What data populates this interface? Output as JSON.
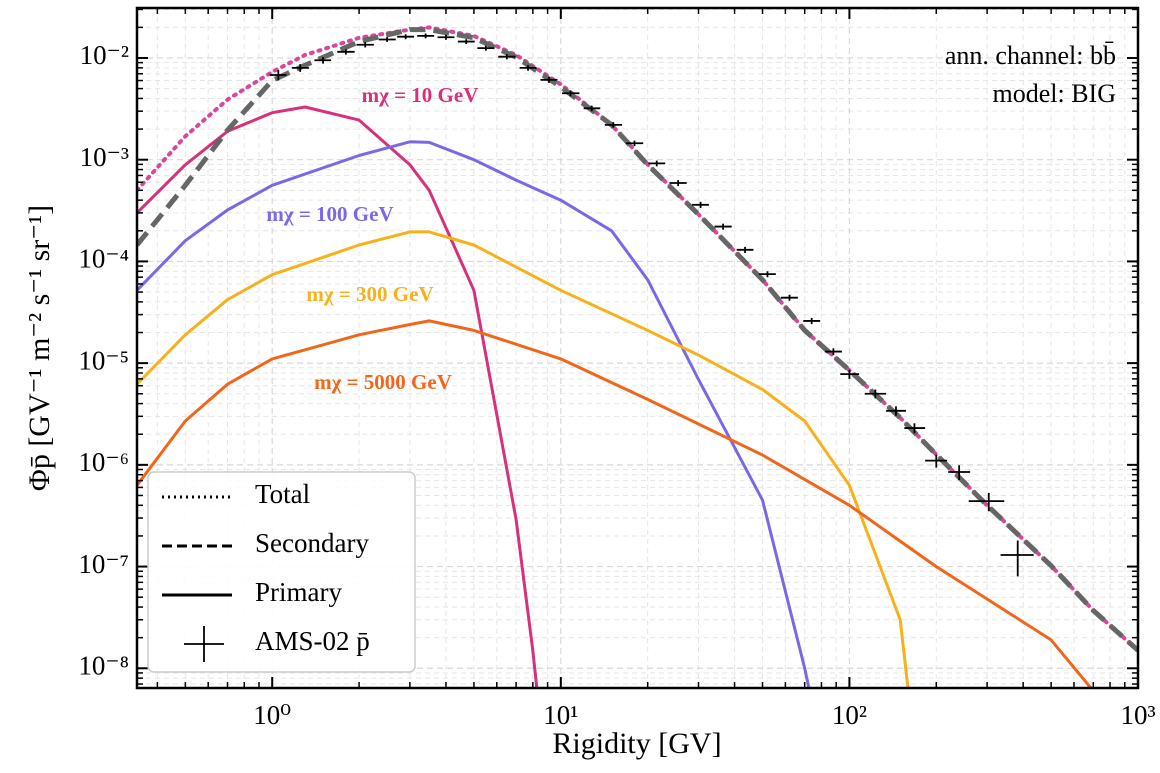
{
  "chart_data": {
    "type": "line",
    "xlabel": "Rigidity [GV]",
    "ylabel": "Φp̄ [GV⁻¹ m⁻² s⁻¹ sr⁻¹]",
    "xscale": "log",
    "yscale": "log",
    "xlim": [
      0.34,
      1000
    ],
    "ylim": [
      6.4e-09,
      0.031
    ],
    "xticks": [
      {
        "value": 1,
        "label": "10⁰"
      },
      {
        "value": 10,
        "label": "10¹"
      },
      {
        "value": 100,
        "label": "10²"
      },
      {
        "value": 1000,
        "label": "10³"
      }
    ],
    "yticks": [
      {
        "value": 1e-08,
        "label": "10⁻⁸"
      },
      {
        "value": 1e-07,
        "label": "10⁻⁷"
      },
      {
        "value": 1e-06,
        "label": "10⁻⁶"
      },
      {
        "value": 1e-05,
        "label": "10⁻⁵"
      },
      {
        "value": 0.0001,
        "label": "10⁻⁴"
      },
      {
        "value": 0.001,
        "label": "10⁻³"
      },
      {
        "value": 0.01,
        "label": "10⁻²"
      }
    ],
    "grid": true,
    "minor_ticks": true,
    "legend_position": "lower left",
    "legend": [
      {
        "label": "Total",
        "style": "dotted"
      },
      {
        "label": "Secondary",
        "style": "dashed"
      },
      {
        "label": "Primary",
        "style": "solid"
      },
      {
        "label": "AMS-02 p̄",
        "style": "errorbar"
      }
    ],
    "annotations": [
      "ann. channel: bb̄",
      "model: BIG"
    ],
    "series": [
      {
        "style": "solid",
        "label": "mχ = 10 GeV",
        "color": "#d6317c",
        "x": [
          0.34,
          0.5,
          0.7,
          1,
          1.3,
          2,
          3,
          3.5,
          5,
          7,
          8,
          8.5
        ],
        "values": [
          0.0003,
          0.00089,
          0.0019,
          0.0029,
          0.0033,
          0.00245,
          0.00089,
          0.0005,
          5.2e-05,
          2.9e-07,
          1.5e-08,
          3e-09
        ]
      },
      {
        "style": "solid",
        "label": "mχ = 100 GeV",
        "color": "#7b68e6",
        "x": [
          0.34,
          0.5,
          0.7,
          1,
          2,
          3,
          3.5,
          5,
          7,
          10,
          15,
          20,
          30,
          50,
          70,
          75
        ],
        "values": [
          5.2e-05,
          0.00016,
          0.00032,
          0.00056,
          0.0011,
          0.0015,
          0.00148,
          0.001,
          0.00063,
          0.0004,
          0.0002,
          6.6e-05,
          6.9e-06,
          4.5e-07,
          1e-08,
          4e-09
        ]
      },
      {
        "style": "solid",
        "label": "mχ = 300 GeV",
        "color": "#f6b11b",
        "x": [
          0.34,
          0.5,
          0.7,
          1,
          2,
          3,
          3.5,
          5,
          10,
          20,
          30,
          50,
          70,
          100,
          150,
          160
        ],
        "values": [
          6.2e-06,
          1.9e-05,
          4.2e-05,
          7.4e-05,
          0.000145,
          0.000195,
          0.000195,
          0.000145,
          5.2e-05,
          2.1e-05,
          1.2e-05,
          5.5e-06,
          2.7e-06,
          6.3e-07,
          3e-08,
          6e-09
        ]
      },
      {
        "style": "solid",
        "label": "mχ = 5000 GeV",
        "color": "#f0661b",
        "x": [
          0.34,
          0.5,
          0.7,
          1,
          2,
          3,
          3.5,
          5,
          10,
          20,
          50,
          100,
          200,
          500,
          700
        ],
        "values": [
          6.3e-07,
          2.7e-06,
          6.2e-06,
          1.1e-05,
          1.9e-05,
          2.4e-05,
          2.6e-05,
          2.1e-05,
          1.1e-05,
          4.4e-06,
          1.25e-06,
          4e-07,
          1e-07,
          1.9e-08,
          6e-09
        ]
      },
      {
        "style": "dotted",
        "color": "#d9479a",
        "x": [
          0.34,
          0.5,
          0.7,
          1,
          1.3,
          2,
          3,
          3.5,
          5,
          7,
          10,
          15,
          20,
          30,
          50,
          70,
          100,
          150,
          200,
          300,
          500,
          700,
          1000
        ],
        "values": [
          0.0005,
          0.0017,
          0.0039,
          0.0073,
          0.0107,
          0.0158,
          0.019,
          0.02,
          0.0165,
          0.0107,
          0.0055,
          0.0022,
          0.0009,
          0.00029,
          6.6e-05,
          2.1e-05,
          8.5e-06,
          2.9e-06,
          1.26e-06,
          4e-07,
          1.02e-07,
          3.7e-08,
          1.5e-08
        ]
      },
      {
        "style": "dashed",
        "color": "#666666",
        "x": [
          0.34,
          0.5,
          0.7,
          1,
          1.3,
          2,
          3,
          3.5,
          5,
          7,
          10,
          15,
          20,
          30,
          50,
          70,
          100,
          150,
          200,
          300,
          500,
          700,
          1000
        ],
        "values": [
          0.000145,
          0.00056,
          0.00195,
          0.006,
          0.0085,
          0.0145,
          0.019,
          0.019,
          0.0158,
          0.0102,
          0.0052,
          0.0022,
          0.00089,
          0.00029,
          6.6e-05,
          2.1e-05,
          8.5e-06,
          2.9e-06,
          1.26e-06,
          4e-07,
          1.02e-07,
          3.7e-08,
          1.5e-08
        ]
      },
      {
        "style": "errorbar",
        "color": "#000000",
        "x": [
          1.05,
          1.25,
          1.5,
          1.8,
          2.1,
          2.5,
          2.9,
          3.4,
          4.0,
          4.7,
          5.5,
          6.5,
          7.7,
          9.1,
          10.8,
          12.8,
          15.2,
          18,
          21.5,
          25.5,
          30.5,
          36.5,
          43.5,
          52,
          62,
          74,
          88,
          100,
          123,
          145,
          168,
          200,
          240,
          304,
          383
        ],
        "x_low": [
          0.98,
          1.17,
          1.4,
          1.68,
          1.96,
          2.34,
          2.71,
          3.18,
          3.74,
          4.4,
          5.14,
          6.07,
          7.2,
          8.5,
          10.1,
          12,
          14.2,
          16.8,
          20.1,
          23.8,
          28.5,
          34.1,
          40.7,
          48.6,
          57.9,
          69.2,
          82.2,
          93,
          113,
          134,
          155,
          183,
          220,
          259,
          334
        ],
        "x_high": [
          1.12,
          1.34,
          1.6,
          1.93,
          2.25,
          2.68,
          3.1,
          3.64,
          4.28,
          5.03,
          5.89,
          6.96,
          8.24,
          9.74,
          11.6,
          13.7,
          16.3,
          19.3,
          23,
          27.3,
          32.6,
          39.1,
          46.5,
          55.6,
          66.3,
          79.2,
          94.2,
          108,
          134,
          157,
          183,
          218,
          262,
          344,
          435
        ],
        "values": [
          0.0068,
          0.008,
          0.0095,
          0.0115,
          0.0135,
          0.0152,
          0.0162,
          0.0165,
          0.016,
          0.0145,
          0.0125,
          0.0103,
          0.008,
          0.0061,
          0.0045,
          0.0032,
          0.0022,
          0.00145,
          0.00092,
          0.00059,
          0.00036,
          0.00022,
          0.00013,
          7.5e-05,
          4.4e-05,
          2.6e-05,
          1.3e-05,
          7.8e-06,
          5e-06,
          3.4e-06,
          2.3e-06,
          1.1e-06,
          8.5e-07,
          4.4e-07,
          1.3e-07
        ],
        "yerr": [
          0.0008,
          0.0007,
          0.0007,
          0.0007,
          0.0008,
          0.0008,
          0.0009,
          0.0009,
          0.0009,
          0.0008,
          0.0007,
          0.0006,
          0.0005,
          0.0004,
          0.0003,
          0.0002,
          0.00014,
          9e-05,
          6e-05,
          4e-05,
          2.5e-05,
          1.5e-05,
          9e-06,
          5e-06,
          3e-06,
          1.8e-06,
          1e-06,
          8e-07,
          5e-07,
          3.6e-07,
          2.6e-07,
          1.6e-07,
          1.4e-07,
          9e-08,
          5e-08
        ]
      }
    ]
  }
}
